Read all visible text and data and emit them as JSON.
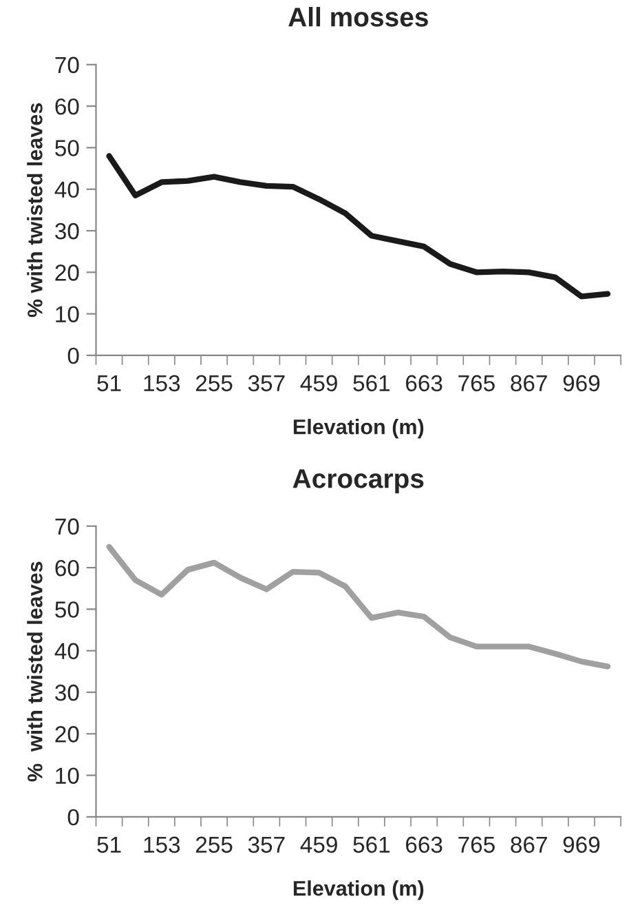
{
  "chart_data": [
    {
      "type": "line",
      "title": "All mosses",
      "xlabel": "Elevation (m)",
      "ylabel": "% with twisted leaves",
      "categories": [
        "51",
        null,
        "153",
        null,
        "255",
        null,
        "357",
        null,
        "459",
        null,
        "561",
        null,
        "663",
        null,
        "765",
        null,
        "867",
        null,
        "969",
        null
      ],
      "series": [
        {
          "color": "#1a1a1a",
          "values": [
            48,
            38.5,
            41.7,
            42,
            43,
            41.7,
            40.8,
            40.6,
            37.6,
            34.2,
            28.8,
            27.5,
            26.2,
            22,
            20,
            20.2,
            20,
            18.8,
            14.2,
            14.8
          ]
        }
      ],
      "ylim": [
        0,
        70
      ],
      "yticks": [
        0,
        10,
        20,
        30,
        40,
        50,
        60,
        70
      ],
      "grid": false,
      "legend": false,
      "marker": "none",
      "line_style": "solid"
    },
    {
      "type": "line",
      "title": "Acrocarps",
      "xlabel": "Elevation (m)",
      "ylabel": "%  with twisted leaves",
      "categories": [
        "51",
        null,
        "153",
        null,
        "255",
        null,
        "357",
        null,
        "459",
        null,
        "561",
        null,
        "663",
        null,
        "765",
        null,
        "867",
        null,
        "969",
        null
      ],
      "series": [
        {
          "color": "#a0a0a0",
          "values": [
            65,
            57,
            53.5,
            59.5,
            61.2,
            57.6,
            54.8,
            59,
            58.8,
            55.5,
            47.9,
            49.2,
            48.2,
            43.2,
            41,
            41,
            41,
            39.3,
            37.4,
            36.2
          ]
        }
      ],
      "ylim": [
        0,
        70
      ],
      "yticks": [
        0,
        10,
        20,
        30,
        40,
        50,
        60,
        70
      ],
      "grid": false,
      "legend": false,
      "marker": "none",
      "line_style": "solid"
    }
  ]
}
